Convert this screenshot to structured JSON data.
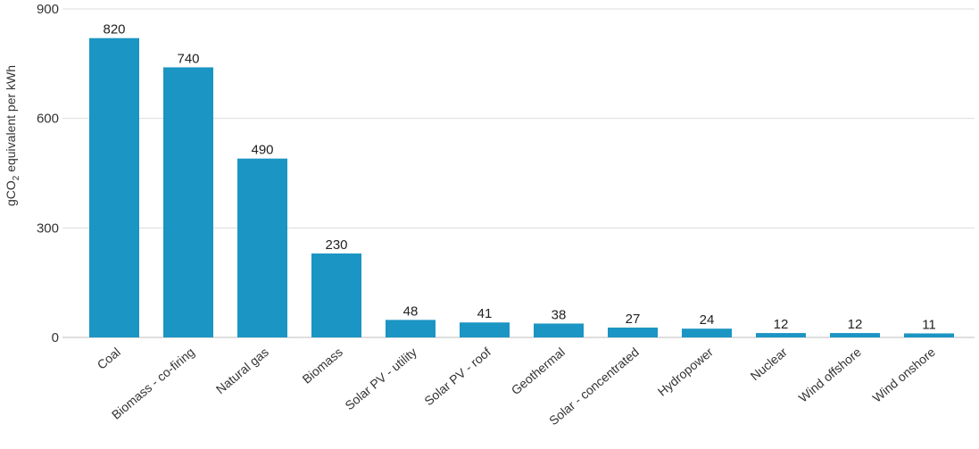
{
  "chart_data": {
    "type": "bar",
    "categories": [
      "Coal",
      "Biomass - co-firing",
      "Natural gas",
      "Biomass",
      "Solar PV - utility",
      "Solar PV - roof",
      "Geothermal",
      "Solar - concentrated",
      "Hydropower",
      "Nuclear",
      "Wind offshore",
      "Wind onshore"
    ],
    "values": [
      820,
      740,
      490,
      230,
      48,
      41,
      38,
      27,
      24,
      12,
      12,
      11
    ],
    "title": "",
    "xlabel": "",
    "ylabel": "gCO",
    "ylabel_subscript": "2",
    "ylabel_suffix": " equivalent per kWh",
    "ylim": [
      0,
      900
    ],
    "yticks": [
      0,
      300,
      600,
      900
    ],
    "grid": true,
    "bar_color": "#1b95c3"
  }
}
